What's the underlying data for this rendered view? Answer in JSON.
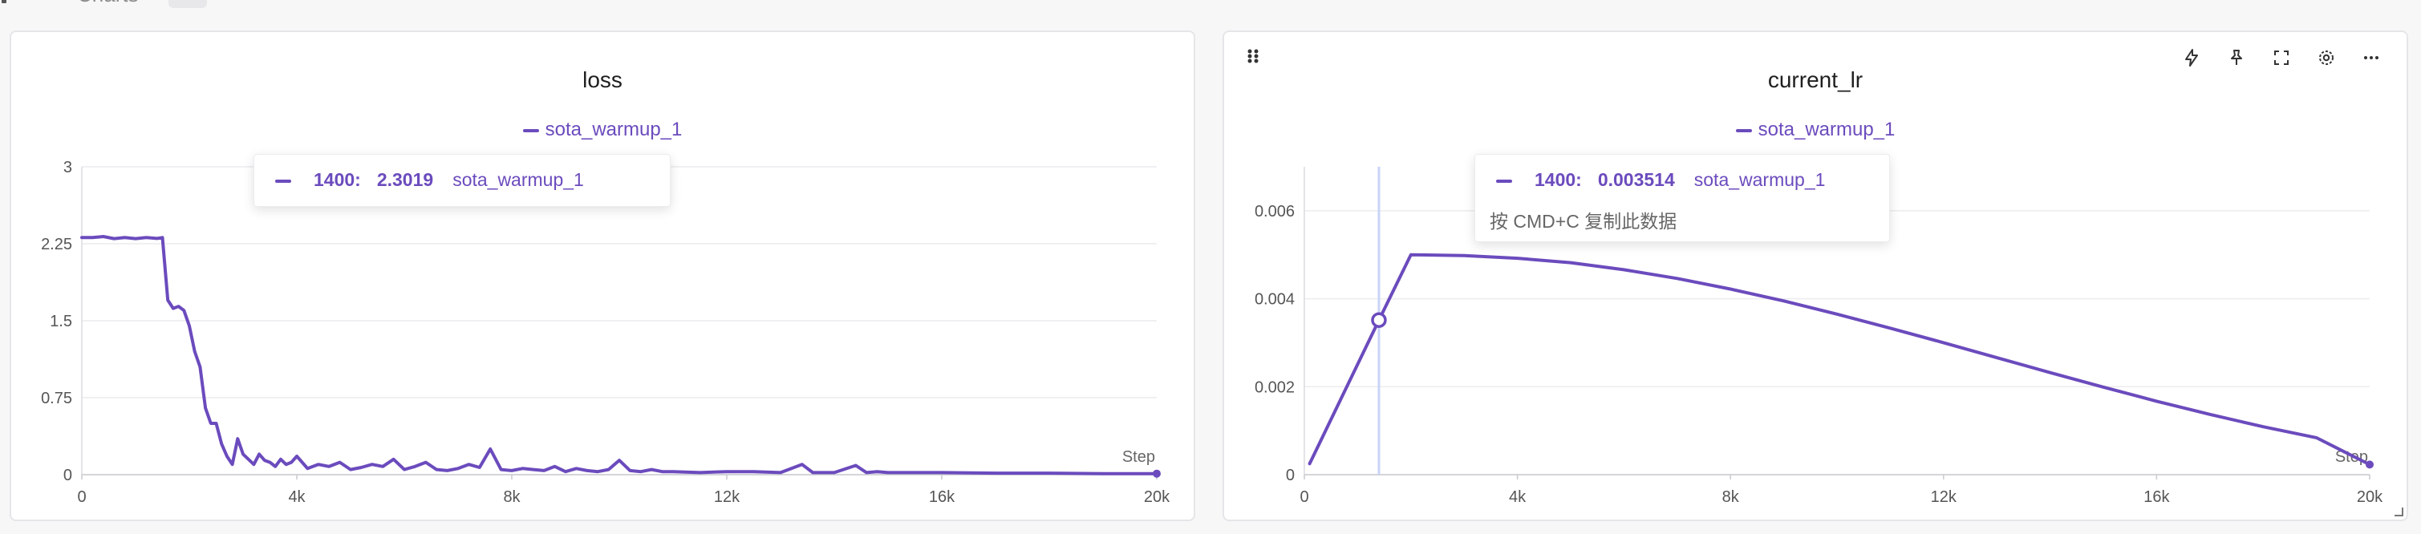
{
  "header": {
    "tab_label": "Charts"
  },
  "icons": {
    "drag": "drag-handle-icon",
    "toolbar": [
      "lightning-icon",
      "pin-icon",
      "fullscreen-icon",
      "gear-icon",
      "more-icon"
    ],
    "resize": "resize-handle-icon"
  },
  "colors": {
    "series": "#6b4bbd",
    "grid": "#ececef",
    "hover_line": "#c8d4f7"
  },
  "chart_data": [
    {
      "type": "line",
      "title": "loss",
      "xlabel": "Step",
      "ylabel": "",
      "xlim": [
        0,
        20000
      ],
      "ylim": [
        0,
        3
      ],
      "x_ticks": [
        "0",
        "4k",
        "8k",
        "12k",
        "16k",
        "20k"
      ],
      "y_ticks": [
        "0",
        "0.75",
        "1.5",
        "2.25",
        "3"
      ],
      "grid": true,
      "legend": "top-center",
      "series": [
        {
          "name": "sota_warmup_1",
          "x": [
            0,
            200,
            400,
            600,
            800,
            1000,
            1200,
            1400,
            1500,
            1600,
            1700,
            1800,
            1900,
            2000,
            2100,
            2200,
            2300,
            2400,
            2500,
            2600,
            2700,
            2800,
            2900,
            3000,
            3100,
            3200,
            3300,
            3400,
            3500,
            3600,
            3700,
            3800,
            3900,
            4000,
            4200,
            4400,
            4600,
            4800,
            5000,
            5200,
            5400,
            5600,
            5800,
            6000,
            6200,
            6400,
            6600,
            6800,
            7000,
            7200,
            7400,
            7600,
            7800,
            8000,
            8200,
            8400,
            8600,
            8800,
            9000,
            9200,
            9400,
            9600,
            9800,
            10000,
            10200,
            10400,
            10600,
            10800,
            11000,
            11500,
            12000,
            12500,
            13000,
            13400,
            13600,
            14000,
            14400,
            14600,
            14800,
            15000,
            16000,
            17000,
            18000,
            19000,
            20000
          ],
          "y": [
            2.31,
            2.31,
            2.32,
            2.3,
            2.31,
            2.3,
            2.31,
            2.3019,
            2.31,
            1.7,
            1.62,
            1.64,
            1.6,
            1.45,
            1.2,
            1.05,
            0.65,
            0.5,
            0.5,
            0.3,
            0.18,
            0.1,
            0.35,
            0.2,
            0.15,
            0.1,
            0.2,
            0.14,
            0.12,
            0.08,
            0.15,
            0.1,
            0.12,
            0.18,
            0.06,
            0.1,
            0.08,
            0.12,
            0.05,
            0.07,
            0.1,
            0.08,
            0.15,
            0.05,
            0.08,
            0.12,
            0.05,
            0.04,
            0.06,
            0.1,
            0.07,
            0.25,
            0.05,
            0.04,
            0.06,
            0.05,
            0.04,
            0.08,
            0.03,
            0.06,
            0.04,
            0.03,
            0.05,
            0.14,
            0.04,
            0.03,
            0.05,
            0.03,
            0.03,
            0.02,
            0.03,
            0.03,
            0.02,
            0.1,
            0.02,
            0.02,
            0.09,
            0.02,
            0.03,
            0.02,
            0.02,
            0.015,
            0.015,
            0.01,
            0.01
          ]
        }
      ],
      "hover": {
        "step": "1400:",
        "value": "2.3019",
        "series": "sota_warmup_1"
      }
    },
    {
      "type": "line",
      "title": "current_lr",
      "xlabel": "Step",
      "ylabel": "",
      "xlim": [
        0,
        20000
      ],
      "ylim": [
        0,
        0.007
      ],
      "x_ticks": [
        "0",
        "4k",
        "8k",
        "12k",
        "16k",
        "20k"
      ],
      "y_ticks": [
        "0",
        "0.002",
        "0.004",
        "0.006"
      ],
      "grid": true,
      "legend": "top-center",
      "series": [
        {
          "name": "sota_warmup_1",
          "x": [
            100,
            1400,
            2000,
            3000,
            4000,
            5000,
            6000,
            7000,
            8000,
            9000,
            10000,
            11000,
            12000,
            13000,
            14000,
            15000,
            16000,
            17000,
            18000,
            19000,
            20000
          ],
          "y": [
            0.00025,
            0.003514,
            0.005,
            0.00498,
            0.00492,
            0.00482,
            0.00466,
            0.00446,
            0.00422,
            0.00395,
            0.00365,
            0.00333,
            0.003,
            0.00266,
            0.00232,
            0.00199,
            0.00167,
            0.00137,
            0.00109,
            0.00084,
            0.00023
          ]
        }
      ],
      "hover": {
        "step": "1400:",
        "value": "0.003514",
        "series": "sota_warmup_1",
        "hint": "按 CMD+C 复制此数据"
      }
    }
  ]
}
